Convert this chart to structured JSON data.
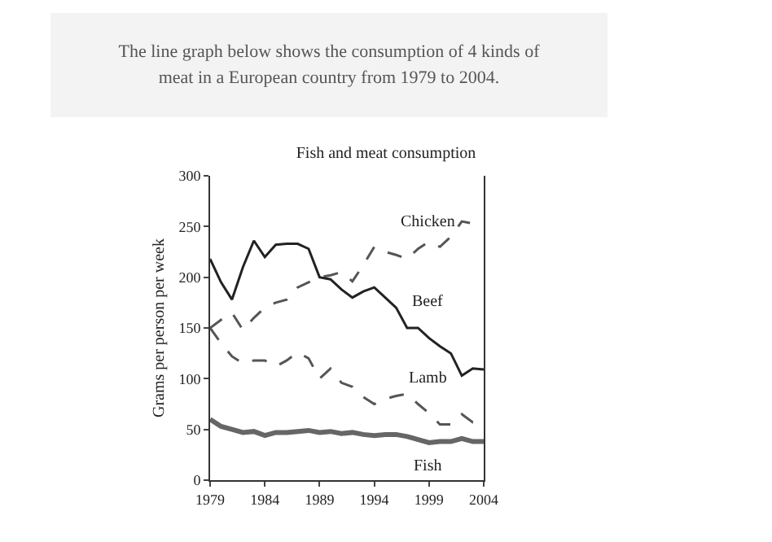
{
  "chart_data": {
    "type": "line",
    "title": "Fish and meat consumption",
    "ylabel": "Grams per person per week",
    "annotations": [
      "The line graph below shows the consumption of 4 kinds of meat in a European country from 1979 to 2004."
    ],
    "x": [
      1979,
      1980,
      1981,
      1982,
      1983,
      1984,
      1985,
      1986,
      1987,
      1988,
      1989,
      1990,
      1991,
      1992,
      1993,
      1994,
      1995,
      1996,
      1997,
      1998,
      1999,
      2000,
      2001,
      2002,
      2003,
      2004
    ],
    "series": [
      {
        "name": "Chicken",
        "color": "#555555",
        "line_style": "dashed",
        "values": [
          150,
          158,
          165,
          148,
          160,
          170,
          175,
          178,
          190,
          195,
          200,
          202,
          205,
          196,
          212,
          230,
          225,
          222,
          218,
          228,
          235,
          230,
          240,
          255,
          253,
          250
        ]
      },
      {
        "name": "Beef",
        "color": "#222222",
        "line_style": "solid",
        "values": [
          218,
          195,
          178,
          210,
          236,
          220,
          232,
          233,
          233,
          228,
          200,
          198,
          188,
          180,
          186,
          190,
          180,
          170,
          150,
          150,
          140,
          132,
          125,
          103,
          110,
          109
        ]
      },
      {
        "name": "Lamb",
        "color": "#555555",
        "line_style": "dashed",
        "values": [
          150,
          135,
          122,
          115,
          118,
          118,
          112,
          118,
          126,
          120,
          100,
          110,
          96,
          92,
          82,
          75,
          80,
          83,
          85,
          75,
          66,
          55,
          55,
          65,
          57,
          58
        ]
      },
      {
        "name": "Fish",
        "color": "#666666",
        "line_style": "solid",
        "values": [
          60,
          53,
          50,
          47,
          48,
          44,
          47,
          47,
          48,
          49,
          47,
          48,
          46,
          47,
          45,
          44,
          45,
          45,
          43,
          40,
          37,
          38,
          38,
          41,
          38,
          38
        ]
      }
    ],
    "xlim": [
      1979,
      2004
    ],
    "xticks": [
      1979,
      1984,
      1989,
      1994,
      1999,
      2004
    ],
    "ylim": [
      0,
      300
    ],
    "yticks": [
      0,
      50,
      100,
      150,
      200,
      250,
      300
    ],
    "grid": false,
    "legend": false,
    "marker": "none"
  }
}
